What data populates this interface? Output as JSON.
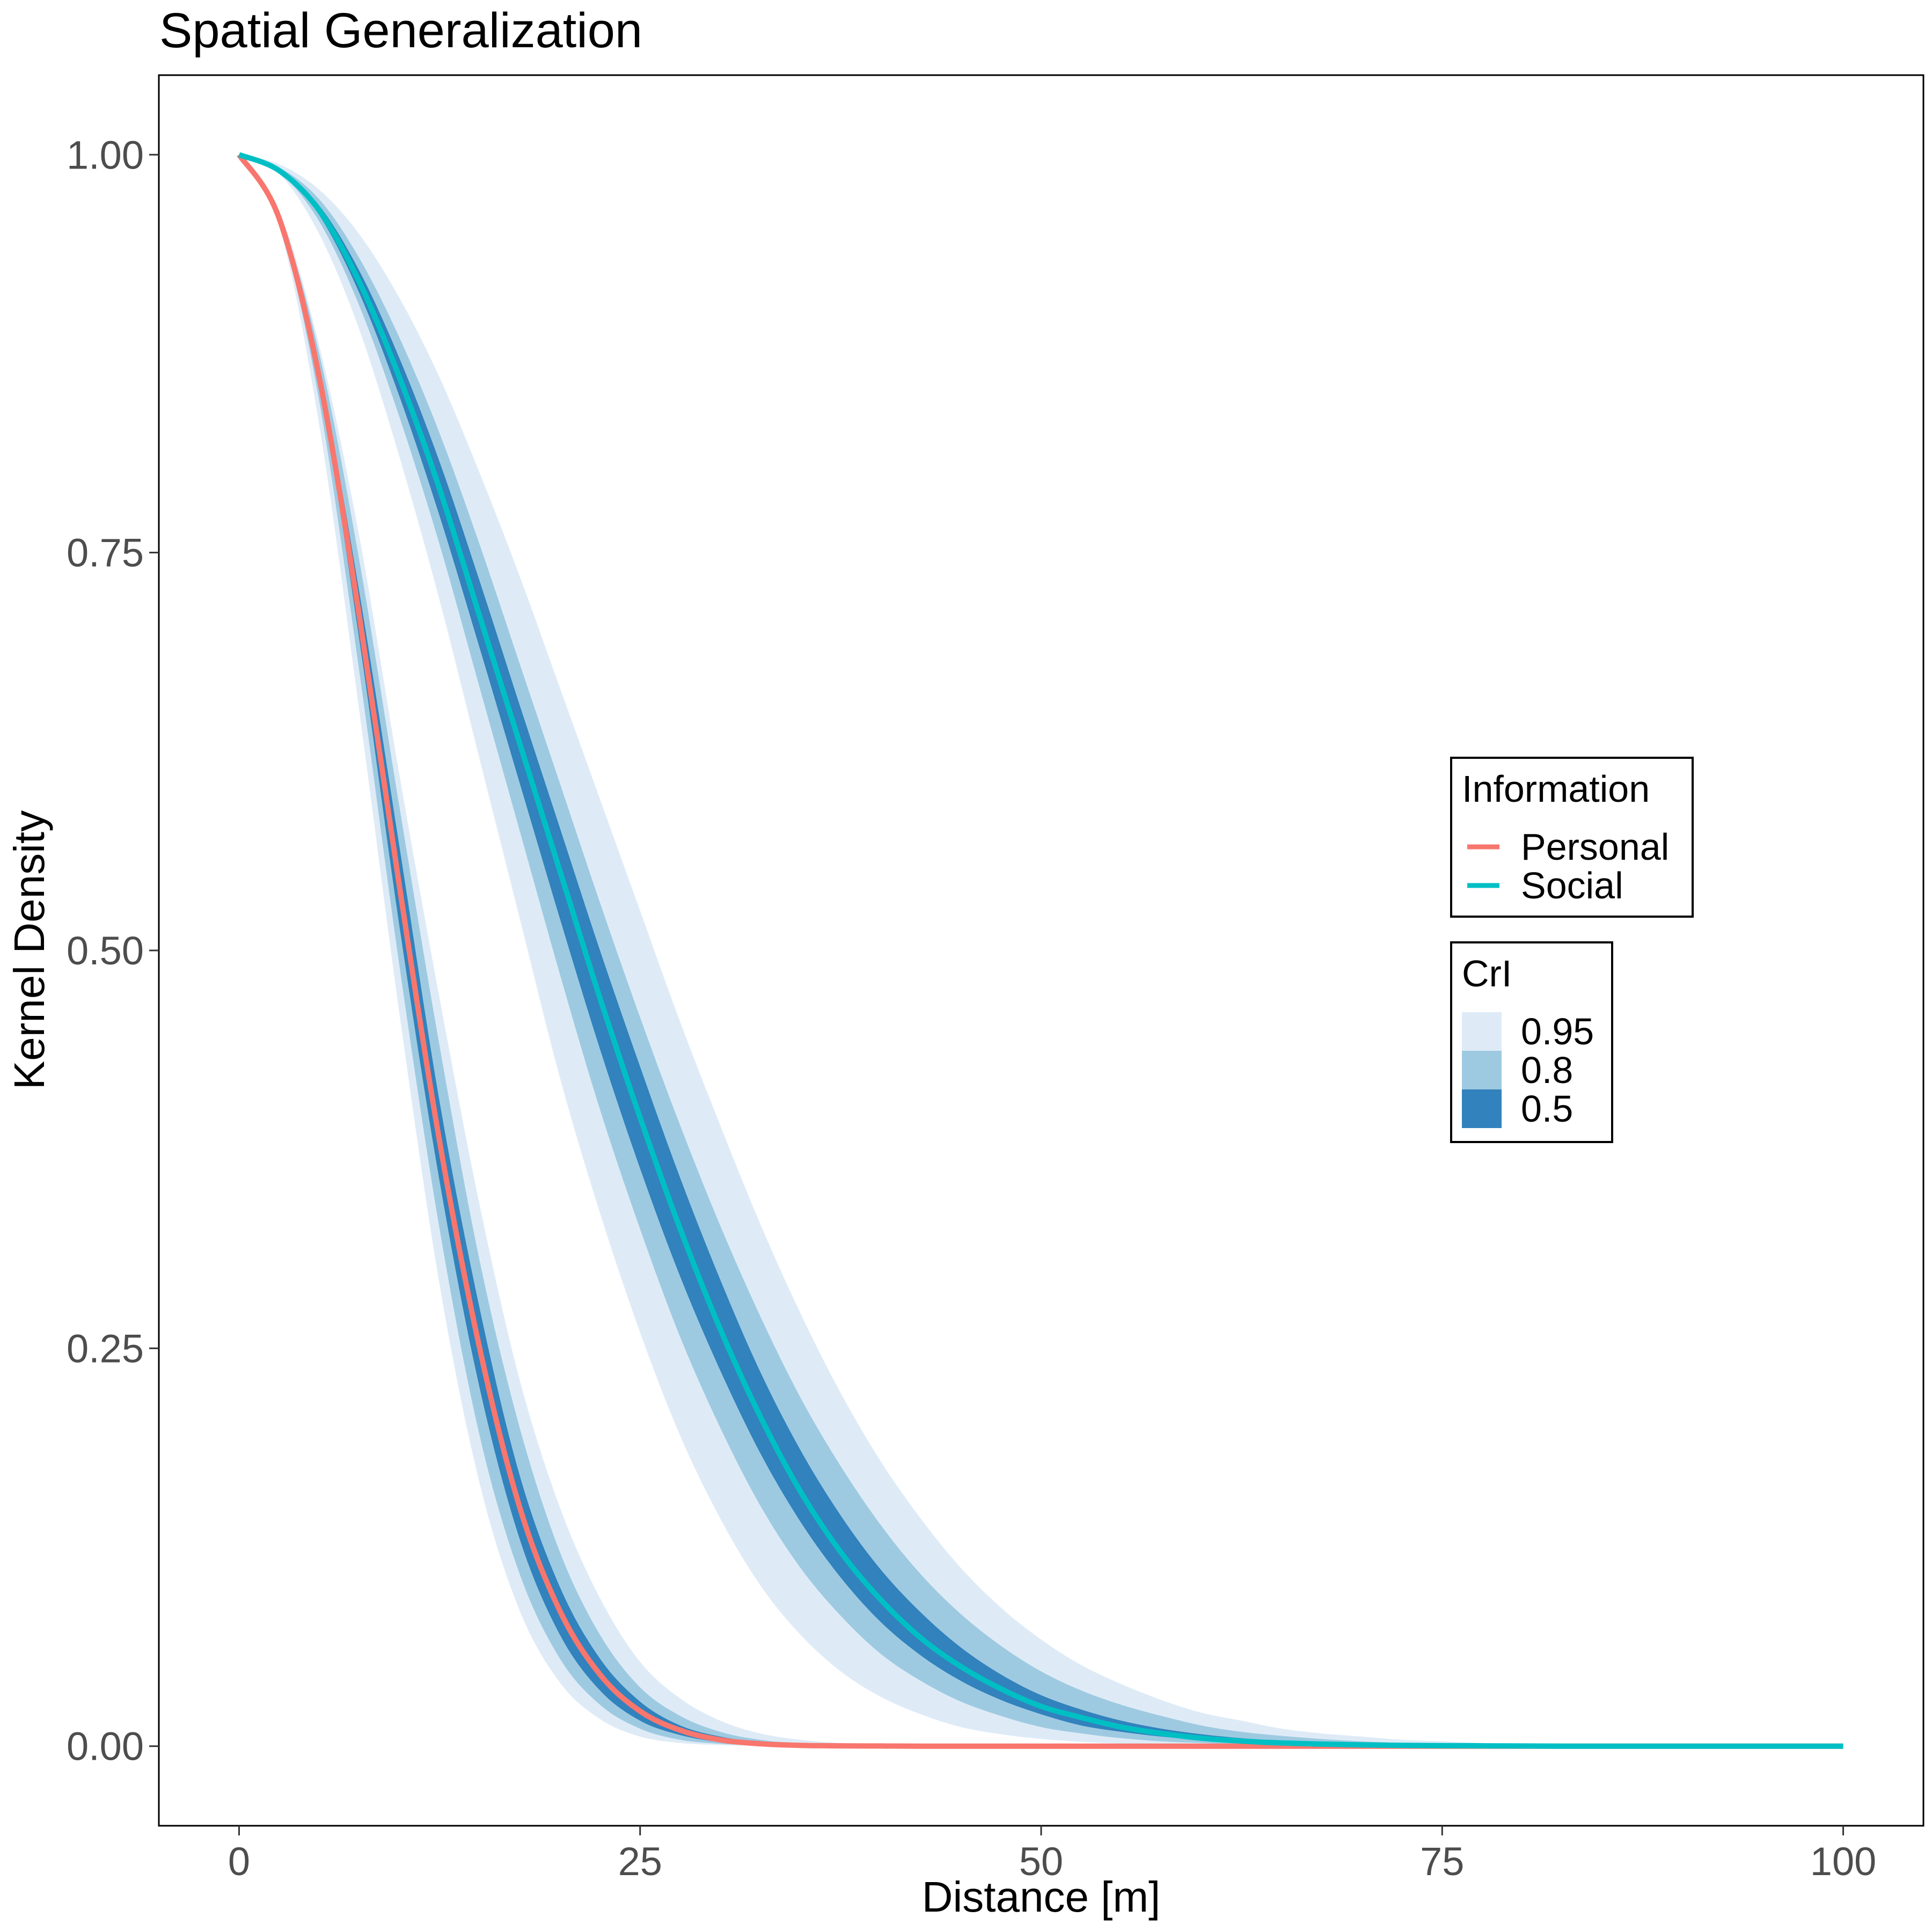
{
  "chart_data": {
    "type": "line",
    "title": "Spatial Generalization",
    "xlabel": "Distance [m]",
    "ylabel": "Kernel Density",
    "xlim": [
      -5,
      105
    ],
    "ylim": [
      -0.05,
      1.05
    ],
    "x_ticks": [
      0,
      25,
      50,
      75,
      100
    ],
    "x_tick_labels": [
      "0",
      "25",
      "50",
      "75",
      "100"
    ],
    "y_ticks": [
      0,
      0.25,
      0.5,
      0.75,
      1.0
    ],
    "y_tick_labels": [
      "0.00",
      "0.25",
      "0.50",
      "0.75",
      "1.00"
    ],
    "grid": false,
    "x": [
      0,
      2.5,
      5,
      7.5,
      10,
      12.5,
      15,
      17.5,
      20,
      22.5,
      25,
      27.5,
      30,
      32.5,
      35,
      37.5,
      40,
      42.5,
      45,
      47.5,
      50,
      52.5,
      55,
      57.5,
      60,
      62.5,
      65,
      67.5,
      70,
      72.5,
      75,
      77.5,
      80,
      82.5,
      85,
      87.5,
      90,
      92.5,
      95,
      97.5,
      100
    ],
    "series": [
      {
        "name": "Personal",
        "color": "#F8766D",
        "values": [
          1.0,
          0.96,
          0.86,
          0.71,
          0.54,
          0.38,
          0.25,
          0.15,
          0.085,
          0.045,
          0.022,
          0.01,
          0.004,
          0.0015,
          0.0005,
          0.0002,
          0.0001,
          0,
          0,
          0,
          0,
          0,
          0,
          0,
          0,
          0,
          0,
          0,
          0,
          0,
          0,
          0,
          0,
          0,
          0,
          0,
          0,
          0,
          0,
          0,
          0
        ],
        "bands": {
          "0.95": {
            "lower": [
              1.0,
              0.955,
              0.83,
              0.65,
              0.46,
              0.29,
              0.165,
              0.085,
              0.04,
              0.017,
              0.006,
              0.002,
              0.0007,
              0.0002,
              0.0001,
              0,
              0,
              0,
              0,
              0,
              0,
              0,
              0,
              0,
              0,
              0,
              0,
              0,
              0,
              0,
              0,
              0,
              0,
              0,
              0,
              0,
              0,
              0,
              0,
              0,
              0
            ],
            "upper": [
              1.0,
              0.965,
              0.88,
              0.76,
              0.61,
              0.47,
              0.34,
              0.23,
              0.15,
              0.093,
              0.053,
              0.03,
              0.016,
              0.008,
              0.004,
              0.002,
              0.0008,
              0.0003,
              0.0001,
              0,
              0,
              0,
              0,
              0,
              0,
              0,
              0,
              0,
              0,
              0,
              0,
              0,
              0,
              0,
              0,
              0,
              0,
              0,
              0,
              0,
              0
            ]
          },
          "0.8": {
            "lower": [
              1.0,
              0.957,
              0.845,
              0.675,
              0.49,
              0.325,
              0.195,
              0.108,
              0.055,
              0.026,
              0.011,
              0.004,
              0.0015,
              0.0005,
              0.0002,
              0,
              0,
              0,
              0,
              0,
              0,
              0,
              0,
              0,
              0,
              0,
              0,
              0,
              0,
              0,
              0,
              0,
              0,
              0,
              0,
              0,
              0,
              0,
              0,
              0,
              0
            ],
            "upper": [
              1.0,
              0.963,
              0.875,
              0.745,
              0.59,
              0.44,
              0.305,
              0.2,
              0.122,
              0.07,
              0.037,
              0.019,
              0.009,
              0.004,
              0.0017,
              0.0007,
              0.0003,
              0.0001,
              0,
              0,
              0,
              0,
              0,
              0,
              0,
              0,
              0,
              0,
              0,
              0,
              0,
              0,
              0,
              0,
              0,
              0,
              0,
              0,
              0,
              0,
              0
            ]
          },
          "0.5": {
            "lower": [
              1.0,
              0.959,
              0.855,
              0.695,
              0.515,
              0.355,
              0.225,
              0.13,
              0.07,
              0.035,
              0.016,
              0.007,
              0.0025,
              0.0009,
              0.0003,
              0.0001,
              0,
              0,
              0,
              0,
              0,
              0,
              0,
              0,
              0,
              0,
              0,
              0,
              0,
              0,
              0,
              0,
              0,
              0,
              0,
              0,
              0,
              0,
              0,
              0,
              0
            ],
            "upper": [
              1.0,
              0.961,
              0.865,
              0.725,
              0.565,
              0.405,
              0.275,
              0.17,
              0.1,
              0.055,
              0.028,
              0.013,
              0.006,
              0.0025,
              0.001,
              0.0004,
              0.0001,
              0,
              0,
              0,
              0,
              0,
              0,
              0,
              0,
              0,
              0,
              0,
              0,
              0,
              0,
              0,
              0,
              0,
              0,
              0,
              0,
              0,
              0,
              0,
              0
            ]
          }
        }
      },
      {
        "name": "Social",
        "color": "#00BFC4",
        "values": [
          1.0,
          0.99,
          0.965,
          0.92,
          0.86,
          0.79,
          0.71,
          0.63,
          0.55,
          0.47,
          0.395,
          0.325,
          0.262,
          0.207,
          0.16,
          0.122,
          0.092,
          0.068,
          0.05,
          0.036,
          0.025,
          0.018,
          0.012,
          0.008,
          0.005,
          0.0032,
          0.002,
          0.0013,
          0.0008,
          0.0005,
          0.0003,
          0.0002,
          0.0001,
          0,
          0,
          0,
          0,
          0,
          0,
          0,
          0
        ],
        "bands": {
          "0.95": {
            "lower": [
              1.0,
              0.988,
              0.95,
              0.89,
              0.81,
              0.72,
              0.62,
              0.52,
              0.42,
              0.335,
              0.26,
              0.195,
              0.143,
              0.101,
              0.07,
              0.047,
              0.031,
              0.02,
              0.012,
              0.0075,
              0.0045,
              0.0027,
              0.0016,
              0.0009,
              0.0005,
              0.0003,
              0.0002,
              0.0001,
              0,
              0,
              0,
              0,
              0,
              0,
              0,
              0,
              0,
              0,
              0,
              0,
              0
            ],
            "upper": [
              1.0,
              0.994,
              0.978,
              0.95,
              0.91,
              0.86,
              0.8,
              0.735,
              0.665,
              0.595,
              0.525,
              0.455,
              0.39,
              0.328,
              0.272,
              0.222,
              0.179,
              0.143,
              0.112,
              0.087,
              0.067,
              0.051,
              0.039,
              0.029,
              0.021,
              0.016,
              0.011,
              0.008,
              0.006,
              0.004,
              0.003,
              0.002,
              0.0014,
              0.001,
              0.0007,
              0.0005,
              0.0003,
              0.0002,
              0.0001,
              0.0001,
              0
            ]
          },
          "0.8": {
            "lower": [
              1.0,
              0.989,
              0.958,
              0.905,
              0.835,
              0.755,
              0.665,
              0.575,
              0.485,
              0.4,
              0.325,
              0.257,
              0.2,
              0.151,
              0.112,
              0.082,
              0.058,
              0.041,
              0.028,
              0.019,
              0.012,
              0.008,
              0.005,
              0.003,
              0.002,
              0.0012,
              0.0007,
              0.0004,
              0.0002,
              0.0001,
              0,
              0,
              0,
              0,
              0,
              0,
              0,
              0,
              0,
              0,
              0
            ],
            "upper": [
              1.0,
              0.992,
              0.972,
              0.935,
              0.885,
              0.825,
              0.755,
              0.68,
              0.605,
              0.53,
              0.458,
              0.39,
              0.327,
              0.27,
              0.219,
              0.176,
              0.139,
              0.108,
              0.083,
              0.063,
              0.047,
              0.035,
              0.026,
              0.019,
              0.013,
              0.009,
              0.0065,
              0.0045,
              0.003,
              0.002,
              0.0014,
              0.0009,
              0.0006,
              0.0004,
              0.0002,
              0.0001,
              0,
              0,
              0,
              0,
              0
            ]
          },
          "0.5": {
            "lower": [
              1.0,
              0.99,
              0.962,
              0.913,
              0.848,
              0.773,
              0.69,
              0.605,
              0.52,
              0.438,
              0.363,
              0.295,
              0.236,
              0.184,
              0.141,
              0.106,
              0.078,
              0.057,
              0.041,
              0.029,
              0.02,
              0.013,
              0.009,
              0.006,
              0.004,
              0.0025,
              0.0015,
              0.001,
              0.0006,
              0.0004,
              0.0002,
              0.0001,
              0,
              0,
              0,
              0,
              0,
              0,
              0,
              0,
              0
            ],
            "upper": [
              1.0,
              0.991,
              0.968,
              0.927,
              0.872,
              0.807,
              0.732,
              0.654,
              0.577,
              0.5,
              0.427,
              0.357,
              0.293,
              0.235,
              0.186,
              0.145,
              0.111,
              0.084,
              0.062,
              0.045,
              0.032,
              0.023,
              0.016,
              0.011,
              0.0075,
              0.005,
              0.0033,
              0.0021,
              0.0013,
              0.0008,
              0.0005,
              0.0003,
              0.0002,
              0.0001,
              0,
              0,
              0,
              0,
              0,
              0,
              0
            ]
          }
        }
      }
    ],
    "band_colors": {
      "0.95": "#DEEBF7",
      "0.8": "#9ECAE1",
      "0.5": "#3182BD"
    },
    "legends": [
      {
        "title": "Information",
        "kind": "line",
        "items": [
          {
            "label": "Personal",
            "color": "#F8766D"
          },
          {
            "label": "Social",
            "color": "#00BFC4"
          }
        ]
      },
      {
        "title": "CrI",
        "kind": "fill",
        "items": [
          {
            "label": "0.95",
            "color": "#DEEBF7"
          },
          {
            "label": "0.8",
            "color": "#9ECAE1"
          },
          {
            "label": "0.5",
            "color": "#3182BD"
          }
        ]
      }
    ],
    "legend_position": "right-center inside"
  }
}
